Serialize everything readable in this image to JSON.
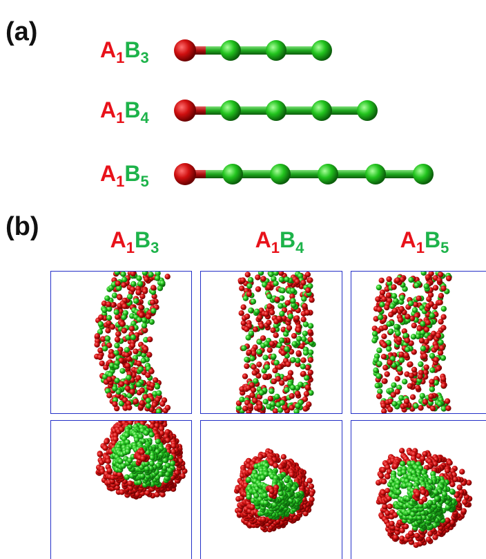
{
  "panel_a": {
    "label": "(a)",
    "molecules": [
      {
        "a": "A",
        "a_sub": "1",
        "b": "B",
        "b_sub": "3"
      },
      {
        "a": "A",
        "a_sub": "1",
        "b": "B",
        "b_sub": "4"
      },
      {
        "a": "A",
        "a_sub": "1",
        "b": "B",
        "b_sub": "5"
      }
    ]
  },
  "panel_b": {
    "label": "(b)",
    "columns": [
      {
        "a": "A",
        "a_sub": "1",
        "b": "B",
        "b_sub": "3"
      },
      {
        "a": "A",
        "a_sub": "1",
        "b": "B",
        "b_sub": "4"
      },
      {
        "a": "A",
        "a_sub": "1",
        "b": "B",
        "b_sub": "5"
      }
    ]
  }
}
